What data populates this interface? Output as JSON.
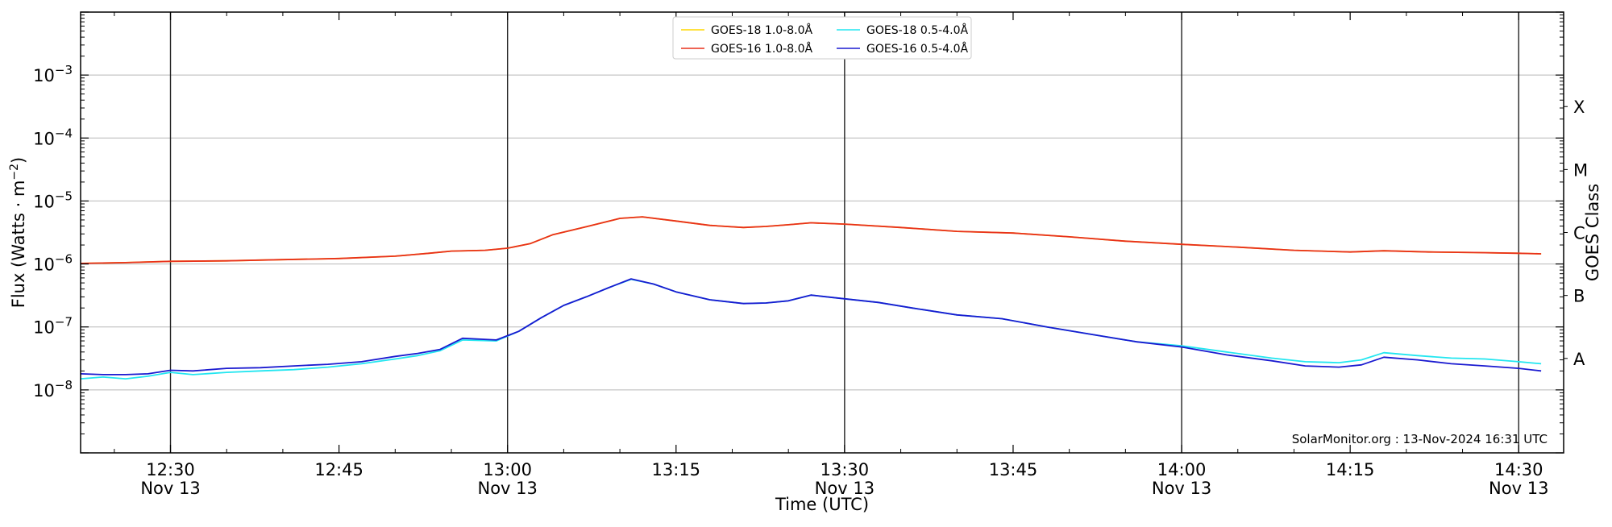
{
  "chart_data": {
    "type": "line",
    "xlabel": "Time (UTC)",
    "ylabel_main": "Flux (Watts · m",
    "ylabel_sup": "−2",
    "ylabel_close": ")",
    "y2label": "GOES Class",
    "yscale": "log",
    "xlim": [
      "12:22",
      "14:34"
    ],
    "ylim": [
      1e-09,
      0.01
    ],
    "grid": "horizontal",
    "legend_placement": "top-center",
    "credit": "SolarMonitor.org : 13-Nov-2024 16:31 UTC",
    "y_ticks": [
      {
        "value": 1e-08,
        "base": "10",
        "exp": "−8"
      },
      {
        "value": 1e-07,
        "base": "10",
        "exp": "−7"
      },
      {
        "value": 1e-06,
        "base": "10",
        "exp": "−6"
      },
      {
        "value": 1e-05,
        "base": "10",
        "exp": "−5"
      },
      {
        "value": 0.0001,
        "base": "10",
        "exp": "−4"
      },
      {
        "value": 0.001,
        "base": "10",
        "exp": "−3"
      }
    ],
    "x_ticks": [
      {
        "t": "12:30",
        "label": "12:30",
        "date": "Nov 13",
        "vline": true
      },
      {
        "t": "12:45",
        "label": "12:45",
        "date": "",
        "vline": false
      },
      {
        "t": "13:00",
        "label": "13:00",
        "date": "Nov 13",
        "vline": true
      },
      {
        "t": "13:15",
        "label": "13:15",
        "date": "",
        "vline": false
      },
      {
        "t": "13:30",
        "label": "13:30",
        "date": "Nov 13",
        "vline": true
      },
      {
        "t": "13:45",
        "label": "13:45",
        "date": "",
        "vline": false
      },
      {
        "t": "14:00",
        "label": "14:00",
        "date": "Nov 13",
        "vline": true
      },
      {
        "t": "14:15",
        "label": "14:15",
        "date": "",
        "vline": false
      },
      {
        "t": "14:30",
        "label": "14:30",
        "date": "Nov 13",
        "vline": true
      }
    ],
    "goes_classes": [
      {
        "label": "A",
        "center": 3.16e-08
      },
      {
        "label": "B",
        "center": 3.16e-07
      },
      {
        "label": "C",
        "center": 3.16e-06
      },
      {
        "label": "M",
        "center": 3.16e-05
      },
      {
        "label": "X",
        "center": 0.000316
      }
    ],
    "series": [
      {
        "name": "GOES-18 1.0-8.0Å",
        "color": "#ffd700",
        "x": [
          "12:22",
          "12:26",
          "12:30",
          "12:35",
          "12:40",
          "12:45",
          "12:50",
          "12:53",
          "12:55",
          "12:58",
          "13:00",
          "13:02",
          "13:04",
          "13:07",
          "13:10",
          "13:12",
          "13:15",
          "13:18",
          "13:21",
          "13:23",
          "13:25",
          "13:27",
          "13:30",
          "13:35",
          "13:40",
          "13:45",
          "13:50",
          "13:55",
          "14:00",
          "14:05",
          "14:10",
          "14:15",
          "14:18",
          "14:22",
          "14:26",
          "14:30",
          "14:32"
        ],
        "y": [
          1.02e-06,
          1.05e-06,
          1.1e-06,
          1.12e-06,
          1.17e-06,
          1.22e-06,
          1.33e-06,
          1.48e-06,
          1.6e-06,
          1.65e-06,
          1.78e-06,
          2.1e-06,
          2.9e-06,
          3.9e-06,
          5.3e-06,
          5.6e-06,
          4.8e-06,
          4.1e-06,
          3.8e-06,
          3.95e-06,
          4.2e-06,
          4.5e-06,
          4.3e-06,
          3.8e-06,
          3.3e-06,
          3.1e-06,
          2.7e-06,
          2.3e-06,
          2.05e-06,
          1.85e-06,
          1.65e-06,
          1.55e-06,
          1.62e-06,
          1.55e-06,
          1.52e-06,
          1.48e-06,
          1.45e-06
        ]
      },
      {
        "name": "GOES-16 1.0-8.0Å",
        "color": "#e8301c",
        "x": [
          "12:22",
          "12:26",
          "12:30",
          "12:35",
          "12:40",
          "12:45",
          "12:50",
          "12:53",
          "12:55",
          "12:58",
          "13:00",
          "13:02",
          "13:04",
          "13:07",
          "13:10",
          "13:12",
          "13:15",
          "13:18",
          "13:21",
          "13:23",
          "13:25",
          "13:27",
          "13:30",
          "13:35",
          "13:40",
          "13:45",
          "13:50",
          "13:55",
          "14:00",
          "14:05",
          "14:10",
          "14:15",
          "14:18",
          "14:22",
          "14:26",
          "14:30",
          "14:32"
        ],
        "y": [
          1.02e-06,
          1.05e-06,
          1.1e-06,
          1.12e-06,
          1.17e-06,
          1.22e-06,
          1.33e-06,
          1.48e-06,
          1.6e-06,
          1.65e-06,
          1.78e-06,
          2.1e-06,
          2.9e-06,
          3.9e-06,
          5.3e-06,
          5.6e-06,
          4.8e-06,
          4.1e-06,
          3.8e-06,
          3.95e-06,
          4.2e-06,
          4.5e-06,
          4.3e-06,
          3.8e-06,
          3.3e-06,
          3.1e-06,
          2.7e-06,
          2.3e-06,
          2.05e-06,
          1.85e-06,
          1.65e-06,
          1.55e-06,
          1.62e-06,
          1.55e-06,
          1.52e-06,
          1.48e-06,
          1.45e-06
        ]
      },
      {
        "name": "GOES-18 0.5-4.0Å",
        "color": "#22e6f0",
        "x": [
          "12:22",
          "12:24",
          "12:26",
          "12:28",
          "12:30",
          "12:32",
          "12:35",
          "12:38",
          "12:41",
          "12:44",
          "12:47",
          "12:50",
          "12:52",
          "12:54",
          "12:56",
          "12:59",
          "13:01",
          "13:03",
          "13:05",
          "13:07",
          "13:09",
          "13:11",
          "13:13",
          "13:15",
          "13:18",
          "13:21",
          "13:23",
          "13:25",
          "13:27",
          "13:30",
          "13:33",
          "13:36",
          "13:40",
          "13:44",
          "13:48",
          "13:52",
          "13:56",
          "14:00",
          "14:04",
          "14:08",
          "14:11",
          "14:14",
          "14:16",
          "14:18",
          "14:21",
          "14:24",
          "14:27",
          "14:30",
          "14:32"
        ],
        "y": [
          1.5e-08,
          1.6e-08,
          1.5e-08,
          1.65e-08,
          1.9e-08,
          1.75e-08,
          1.9e-08,
          2e-08,
          2.1e-08,
          2.3e-08,
          2.6e-08,
          3.1e-08,
          3.5e-08,
          4.2e-08,
          6.2e-08,
          6e-08,
          8.5e-08,
          1.4e-07,
          2.2e-07,
          3e-07,
          4.2e-07,
          5.7e-07,
          4.8e-07,
          3.6e-07,
          2.7e-07,
          2.35e-07,
          2.4e-07,
          2.6e-07,
          3.2e-07,
          2.8e-07,
          2.45e-07,
          2e-07,
          1.55e-07,
          1.35e-07,
          1e-07,
          7.6e-08,
          5.8e-08,
          5e-08,
          4e-08,
          3.2e-08,
          2.8e-08,
          2.7e-08,
          3e-08,
          3.9e-08,
          3.5e-08,
          3.2e-08,
          3.1e-08,
          2.8e-08,
          2.6e-08
        ]
      },
      {
        "name": "GOES-16 0.5-4.0Å",
        "color": "#1a1ad0",
        "x": [
          "12:22",
          "12:24",
          "12:26",
          "12:28",
          "12:30",
          "12:32",
          "12:35",
          "12:38",
          "12:41",
          "12:44",
          "12:47",
          "12:50",
          "12:52",
          "12:54",
          "12:56",
          "12:59",
          "13:01",
          "13:03",
          "13:05",
          "13:07",
          "13:09",
          "13:11",
          "13:13",
          "13:15",
          "13:18",
          "13:21",
          "13:23",
          "13:25",
          "13:27",
          "13:30",
          "13:33",
          "13:36",
          "13:40",
          "13:44",
          "13:48",
          "13:52",
          "13:56",
          "14:00",
          "14:04",
          "14:08",
          "14:11",
          "14:14",
          "14:16",
          "14:18",
          "14:21",
          "14:24",
          "14:27",
          "14:30",
          "14:32"
        ],
        "y": [
          1.8e-08,
          1.75e-08,
          1.75e-08,
          1.8e-08,
          2.05e-08,
          2e-08,
          2.2e-08,
          2.25e-08,
          2.4e-08,
          2.55e-08,
          2.8e-08,
          3.4e-08,
          3.8e-08,
          4.4e-08,
          6.6e-08,
          6.2e-08,
          8.5e-08,
          1.4e-07,
          2.2e-07,
          3e-07,
          4.2e-07,
          5.8e-07,
          4.8e-07,
          3.6e-07,
          2.7e-07,
          2.35e-07,
          2.4e-07,
          2.6e-07,
          3.2e-07,
          2.8e-07,
          2.45e-07,
          2e-07,
          1.55e-07,
          1.35e-07,
          1e-07,
          7.6e-08,
          5.8e-08,
          4.8e-08,
          3.6e-08,
          2.9e-08,
          2.4e-08,
          2.3e-08,
          2.5e-08,
          3.3e-08,
          3e-08,
          2.6e-08,
          2.4e-08,
          2.2e-08,
          2e-08
        ]
      }
    ]
  }
}
